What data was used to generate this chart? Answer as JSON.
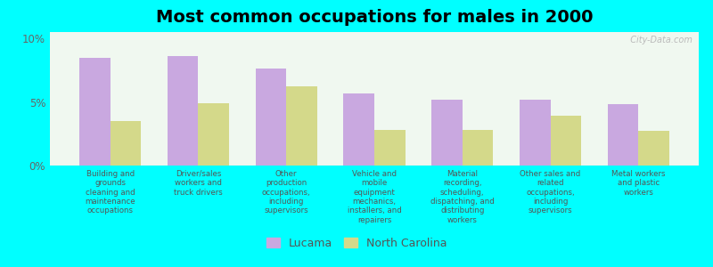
{
  "title": "Most common occupations for males in 2000",
  "categories": [
    "Building and\ngrounds\ncleaning and\nmaintenance\noccupations",
    "Driver/sales\nworkers and\ntruck drivers",
    "Other\nproduction\noccupations,\nincluding\nsupervisors",
    "Vehicle and\nmobile\nequipment\nmechanics,\ninstallers, and\nrepairers",
    "Material\nrecording,\nscheduling,\ndispatching, and\ndistributing\nworkers",
    "Other sales and\nrelated\noccupations,\nincluding\nsupervisors",
    "Metal workers\nand plastic\nworkers"
  ],
  "lucama_values": [
    8.5,
    8.6,
    7.6,
    5.7,
    5.2,
    5.2,
    4.8
  ],
  "nc_values": [
    3.5,
    4.9,
    6.2,
    2.8,
    2.8,
    3.9,
    2.7
  ],
  "lucama_color": "#c9a8e0",
  "nc_color": "#d4d98a",
  "background_color": "#00ffff",
  "plot_bg_color": "#f0f8f0",
  "ylim": [
    0,
    10.5
  ],
  "yticks": [
    0,
    5,
    10
  ],
  "ytick_labels": [
    "0%",
    "5%",
    "10%"
  ],
  "legend_labels": [
    "Lucama",
    "North Carolina"
  ],
  "bar_width": 0.35,
  "title_fontsize": 14,
  "label_fontsize": 6.2,
  "watermark": "  City-Data.com"
}
